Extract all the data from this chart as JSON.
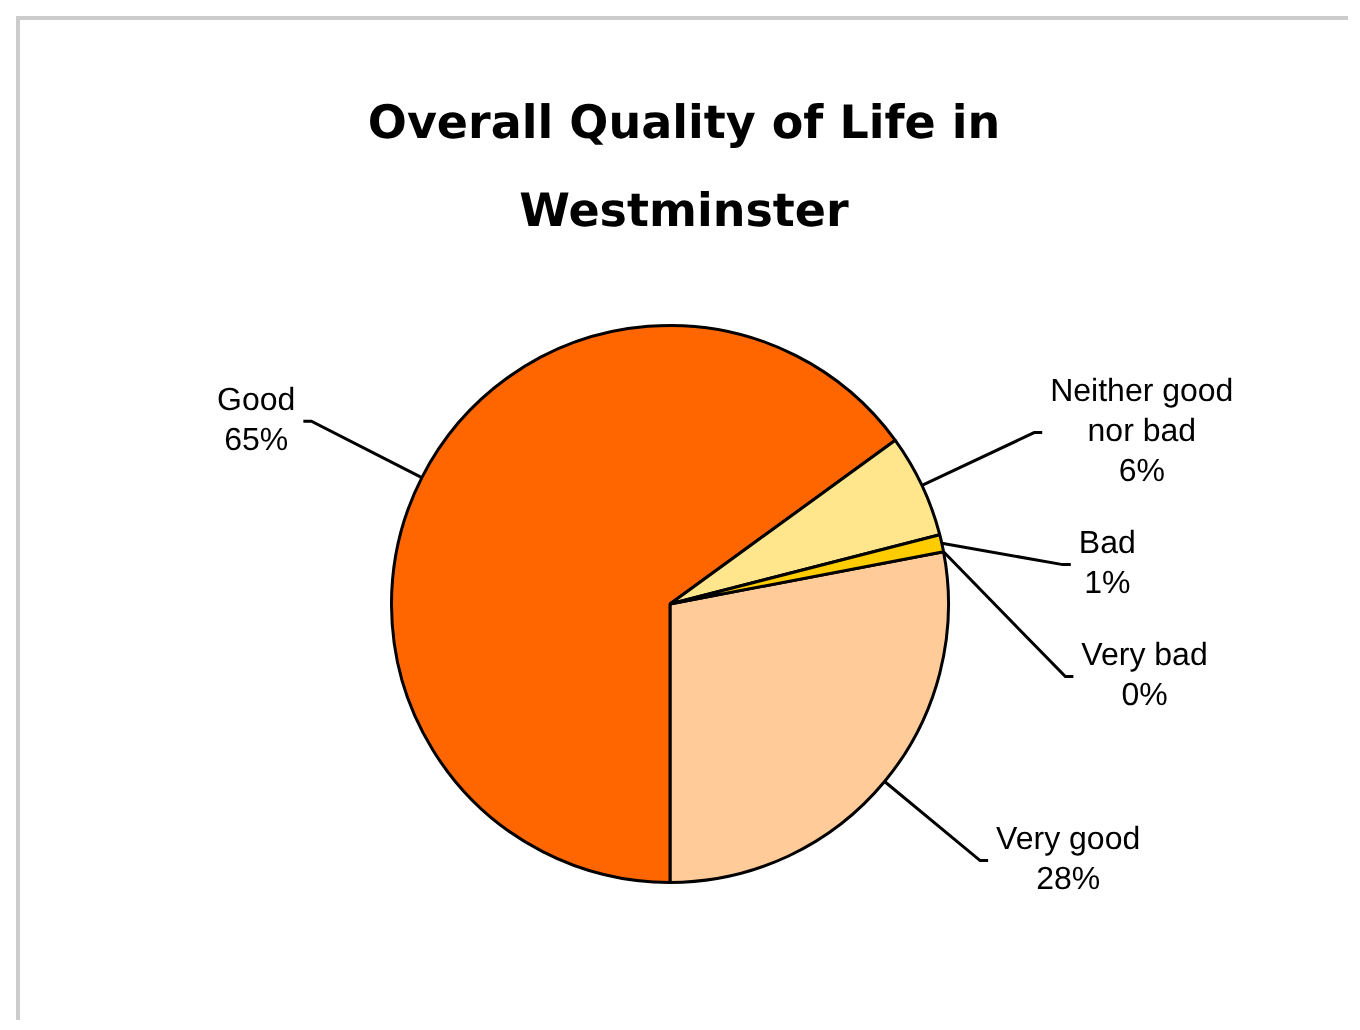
{
  "chart_data": {
    "type": "pie",
    "title": "Overall Quality of Life in Westminster",
    "categories": [
      "Very good",
      "Good",
      "Neither good nor bad",
      "Bad",
      "Very bad"
    ],
    "values": [
      28,
      65,
      6,
      1,
      0
    ],
    "colors": [
      "#ffcc99",
      "#ff6600",
      "#ffe68c",
      "#ffcc00",
      "#ff9933"
    ],
    "value_labels": [
      "28%",
      "65%",
      "6%",
      "1%",
      "0%"
    ]
  }
}
